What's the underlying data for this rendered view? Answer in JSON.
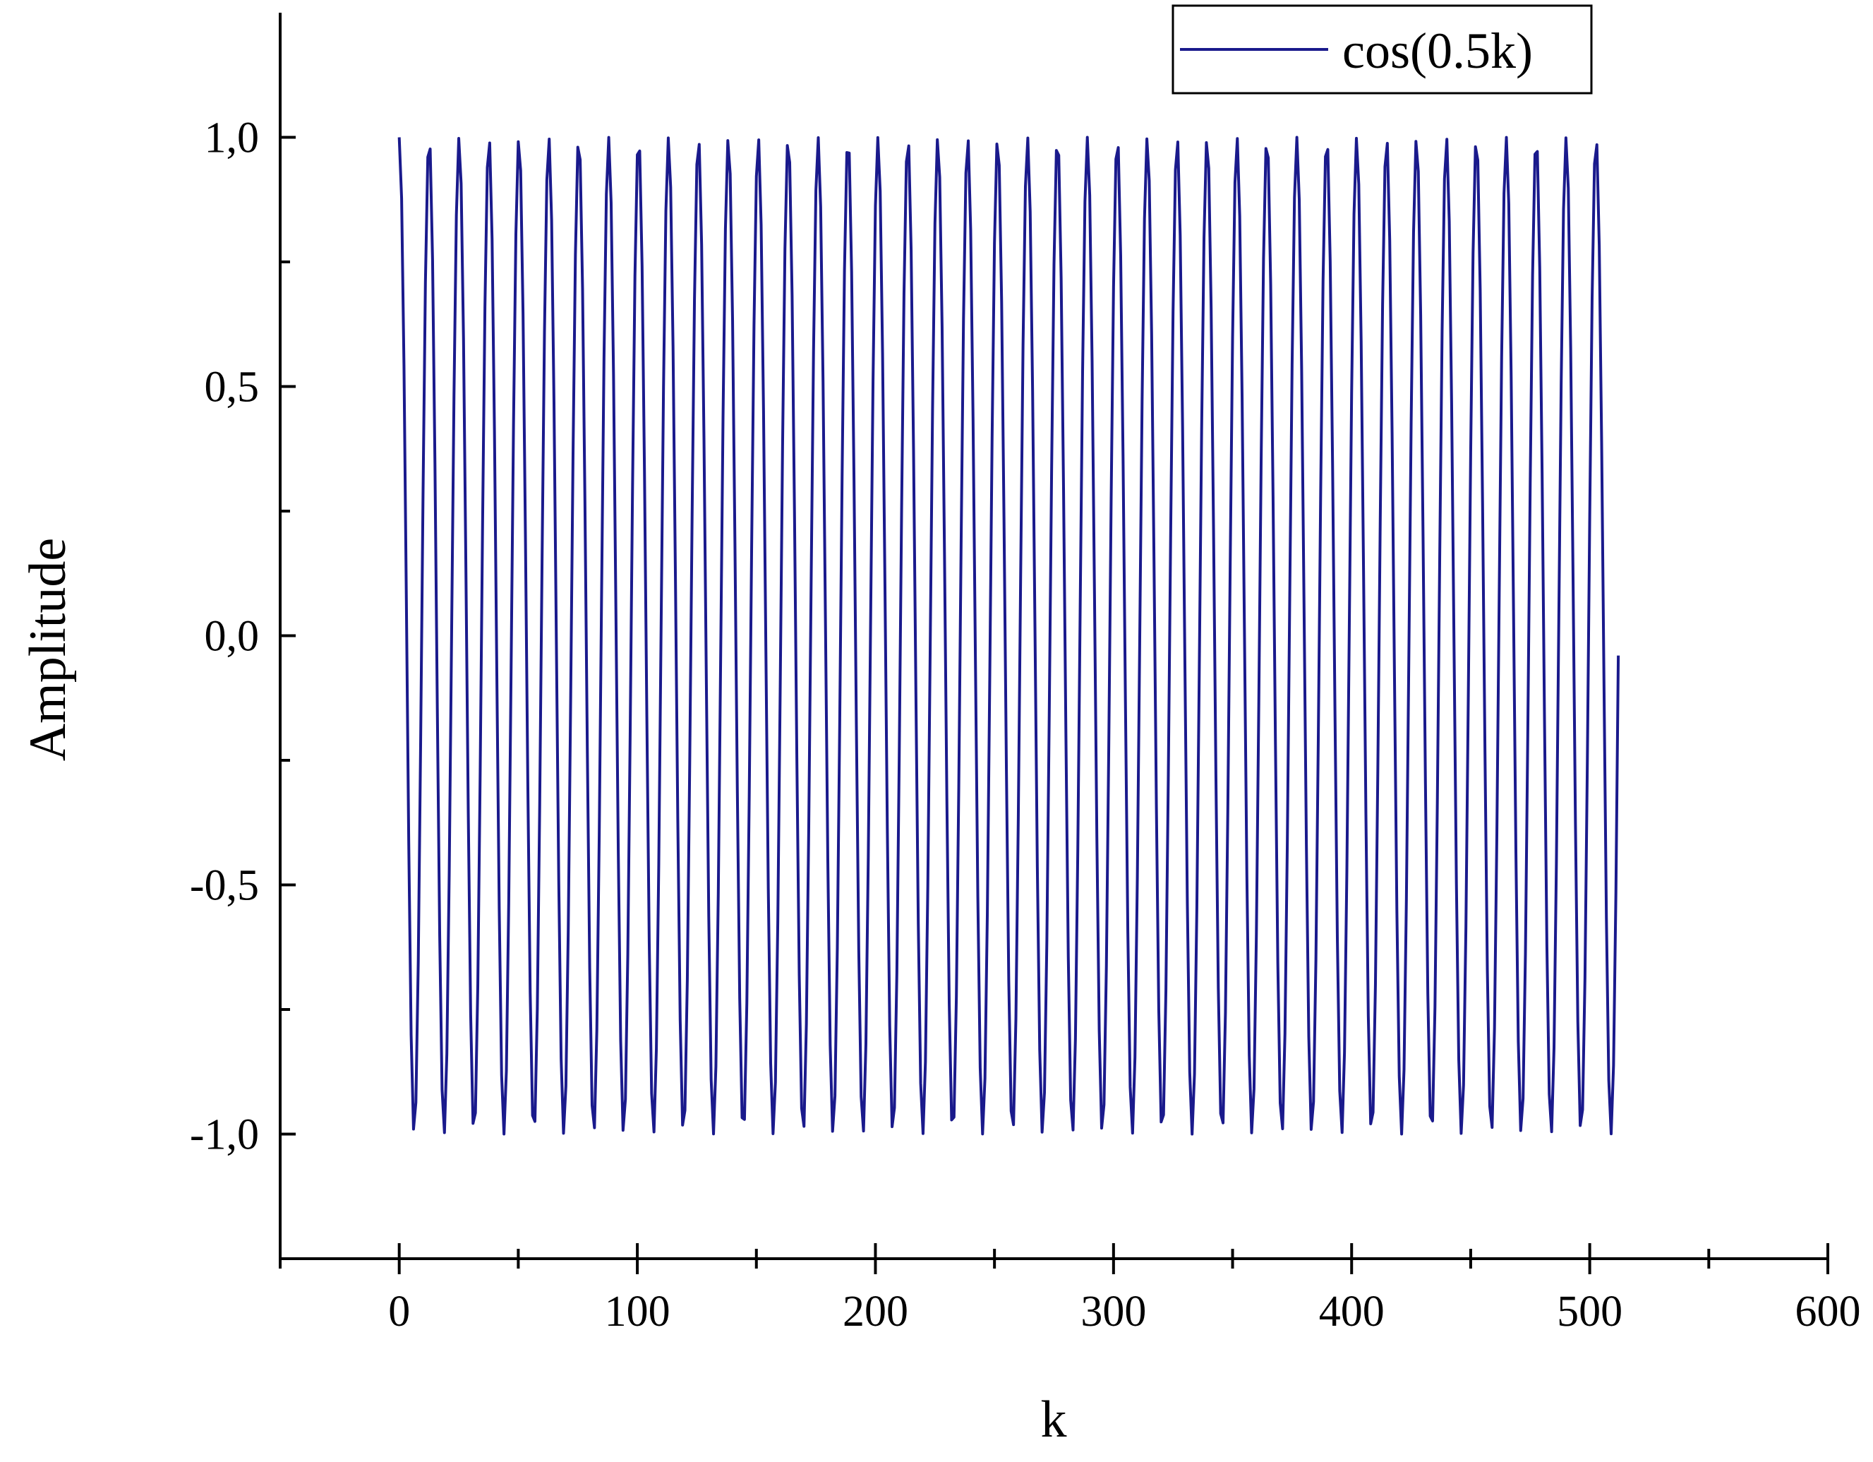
{
  "chart_data": {
    "type": "line",
    "title": "",
    "xlabel": "k",
    "ylabel": "Amplitude",
    "xlim": [
      -50,
      600
    ],
    "ylim": [
      -1.25,
      1.25
    ],
    "x_ticks": [
      0,
      100,
      200,
      300,
      400,
      500,
      600
    ],
    "x_tick_labels": [
      "0",
      "100",
      "200",
      "300",
      "400",
      "500",
      "600"
    ],
    "x_minor_step": 50,
    "y_ticks": [
      -1.0,
      -0.5,
      0.0,
      0.5,
      1.0
    ],
    "y_tick_labels": [
      "-1,0",
      "-0,5",
      "0,0",
      "0,5",
      "1,0"
    ],
    "y_minor_step": 0.25,
    "grid": false,
    "legend_position": "top-right",
    "series": [
      {
        "name": "cos(0.5k)",
        "color": "#1a1a8c",
        "function": "cos(0.5k)",
        "k_start": 0,
        "k_end": 512,
        "k_step": 1
      }
    ]
  }
}
